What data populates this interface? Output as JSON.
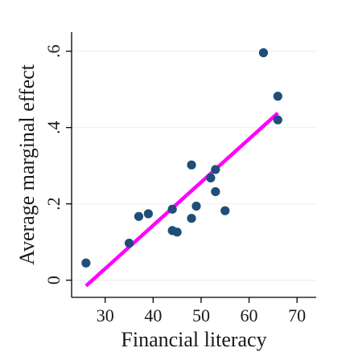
{
  "chart_data": {
    "type": "scatter",
    "xlabel": "Financial literacy",
    "ylabel": "Average marginal effect",
    "xlim": [
      23,
      74
    ],
    "ylim": [
      -0.045,
      0.65
    ],
    "x_ticks": [
      30,
      40,
      50,
      60,
      70
    ],
    "x_tick_labels": [
      "30",
      "40",
      "50",
      "60",
      "70"
    ],
    "y_ticks": [
      0,
      0.2,
      0.4,
      0.6
    ],
    "y_tick_labels": [
      "0",
      ".2",
      ".4",
      ".6"
    ],
    "grid": "horizontal",
    "points": [
      {
        "x": 26,
        "y": 0.045
      },
      {
        "x": 35,
        "y": 0.097
      },
      {
        "x": 37,
        "y": 0.167
      },
      {
        "x": 39,
        "y": 0.174
      },
      {
        "x": 44,
        "y": 0.186
      },
      {
        "x": 44,
        "y": 0.13
      },
      {
        "x": 45,
        "y": 0.126
      },
      {
        "x": 48,
        "y": 0.302
      },
      {
        "x": 48,
        "y": 0.162
      },
      {
        "x": 49,
        "y": 0.194
      },
      {
        "x": 52,
        "y": 0.268
      },
      {
        "x": 53,
        "y": 0.29
      },
      {
        "x": 53,
        "y": 0.232
      },
      {
        "x": 55,
        "y": 0.182
      },
      {
        "x": 63,
        "y": 0.596
      },
      {
        "x": 66,
        "y": 0.482
      },
      {
        "x": 66,
        "y": 0.42
      }
    ],
    "fit_line": {
      "x": [
        26,
        66
      ],
      "y": [
        -0.015,
        0.438
      ]
    },
    "colors": {
      "points": "#1f4e79",
      "fit_line": "#ff00ff",
      "grid": "#eaf0f3",
      "axis": "#000000"
    }
  }
}
